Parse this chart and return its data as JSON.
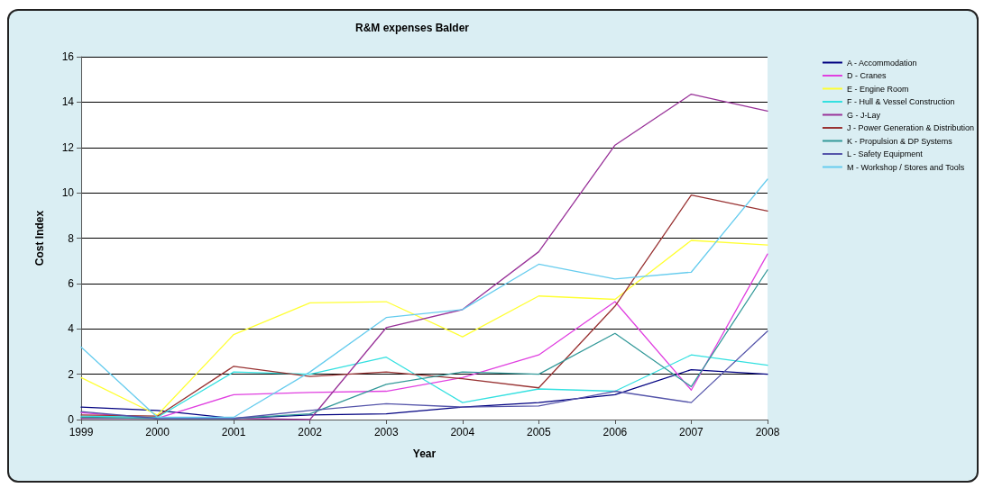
{
  "chart_data": {
    "type": "line",
    "title": "R&M expenses Balder",
    "xlabel": "Year",
    "ylabel": "Cost Index",
    "categories": [
      "1999",
      "2000",
      "2001",
      "2002",
      "2003",
      "2004",
      "2005",
      "2006",
      "2007",
      "2008"
    ],
    "ylim": [
      0,
      16
    ],
    "yticks": [
      0,
      2,
      4,
      6,
      8,
      10,
      12,
      14,
      16
    ],
    "grid": "y",
    "legend": "right",
    "marker": "none",
    "line_style": "solid",
    "series": [
      {
        "name": "A - Accommodation",
        "color": "#000080",
        "values": [
          0.55,
          0.4,
          0.05,
          0.2,
          0.25,
          0.55,
          0.75,
          1.1,
          2.2,
          2.0
        ]
      },
      {
        "name": "D - Cranes",
        "color": "#e040e0",
        "values": [
          0.3,
          0.05,
          1.1,
          1.2,
          1.25,
          1.85,
          2.85,
          5.2,
          1.3,
          7.3
        ]
      },
      {
        "name": "E - Engine Room",
        "color": "#ffff33",
        "values": [
          1.85,
          0.2,
          3.75,
          5.15,
          5.2,
          3.65,
          5.45,
          5.3,
          7.9,
          7.7
        ]
      },
      {
        "name": "F - Hull & Vessel Construction",
        "color": "#33e0e0",
        "values": [
          0.15,
          0.1,
          2.1,
          2.0,
          2.75,
          0.75,
          1.35,
          1.25,
          2.85,
          2.4
        ]
      },
      {
        "name": "G - J-Lay",
        "color": "#993399",
        "values": [
          0.05,
          0.05,
          0.05,
          0.0,
          4.05,
          4.85,
          7.4,
          12.1,
          14.35,
          13.6
        ]
      },
      {
        "name": "J - Power Generation & Distribution",
        "color": "#993333",
        "values": [
          0.2,
          0.15,
          2.35,
          1.9,
          2.1,
          1.8,
          1.4,
          5.0,
          9.9,
          9.2
        ]
      },
      {
        "name": "K - Propulsion & DP Systems",
        "color": "#339999",
        "values": [
          0.1,
          0.05,
          0.05,
          0.25,
          1.55,
          2.1,
          2.0,
          3.8,
          1.45,
          6.6
        ]
      },
      {
        "name": "L - Safety Equipment",
        "color": "#5555aa",
        "values": [
          0.35,
          0.05,
          0.05,
          0.4,
          0.7,
          0.55,
          0.6,
          1.25,
          0.75,
          3.9
        ]
      },
      {
        "name": "M - Workshop / Stores and Tools",
        "color": "#66ccee",
        "values": [
          3.2,
          0.1,
          0.1,
          2.1,
          4.5,
          4.85,
          6.85,
          6.2,
          6.5,
          10.6
        ]
      }
    ]
  }
}
